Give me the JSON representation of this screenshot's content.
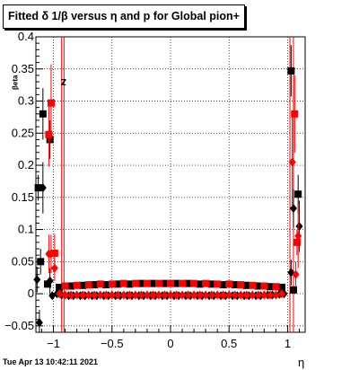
{
  "title": "Fitted δ 1/β versus η and p for Global pion+",
  "timestamp": "Tue Apr 13 10:42:11 2021",
  "colors": {
    "black": "#000000",
    "red": "#ff0000",
    "grid": "#000000"
  },
  "chart_data": {
    "type": "scatter",
    "title": "Fitted δ 1/β versus η and p for Global pion+",
    "xlabel": "η",
    "ylabel_main": "z",
    "ylabel_sub": "βeta",
    "xlim": [
      -1.15,
      1.15
    ],
    "ylim": [
      -0.06,
      0.4
    ],
    "grid": true,
    "xticks": [
      -1,
      -0.5,
      0,
      0.5,
      1
    ],
    "xtick_labels": [
      "−1",
      "−0.5",
      "0",
      "0.5",
      "1"
    ],
    "yticks": [
      -0.05,
      0,
      0.05,
      0.1,
      0.15,
      0.2,
      0.25,
      0.3,
      0.35,
      0.4
    ],
    "ytick_labels": [
      "−0.05",
      "0",
      "0.05",
      "0.1",
      "0.15",
      "0.2",
      "0.25",
      "0.3",
      "0.35",
      "0.4"
    ],
    "series": [
      {
        "marker": "square",
        "color": "#000000",
        "x": [
          -1.13,
          -1.11,
          -1.09,
          -1.05,
          -1.03,
          -0.95,
          -0.85,
          -0.75,
          -0.65,
          -0.55,
          -0.45,
          -0.35,
          -0.25,
          -0.15,
          -0.05,
          0.05,
          0.15,
          0.25,
          0.35,
          0.45,
          0.55,
          0.65,
          0.75,
          0.85,
          0.95,
          1.03,
          1.05,
          1.09
        ],
        "y": [
          0.165,
          0.05,
          0.28,
          0.015,
          0.24,
          0.01,
          0.012,
          0.013,
          0.014,
          0.014,
          0.015,
          0.015,
          0.016,
          0.016,
          0.016,
          0.016,
          0.016,
          0.015,
          0.015,
          0.014,
          0.014,
          0.013,
          0.012,
          0.011,
          0.01,
          0.347,
          0.006,
          0.155
        ],
        "err": [
          0.02,
          0.02,
          0.04,
          0.005,
          0.03,
          0.003,
          0.002,
          0.002,
          0.002,
          0.002,
          0.002,
          0.002,
          0.002,
          0.002,
          0.002,
          0.002,
          0.002,
          0.002,
          0.002,
          0.002,
          0.002,
          0.002,
          0.002,
          0.002,
          0.003,
          0.04,
          0.004,
          0.03
        ]
      },
      {
        "marker": "square",
        "color": "#ff0000",
        "x": [
          -1.04,
          -1.02,
          -0.99,
          -0.9,
          -0.8,
          -0.7,
          -0.6,
          -0.5,
          -0.4,
          -0.3,
          -0.2,
          -0.1,
          0.0,
          0.1,
          0.2,
          0.3,
          0.4,
          0.5,
          0.6,
          0.7,
          0.8,
          0.9,
          1.06,
          1.08
        ],
        "y": [
          0.248,
          0.297,
          0.063,
          0.012,
          0.013,
          0.014,
          0.015,
          0.015,
          0.016,
          0.016,
          0.016,
          0.016,
          0.016,
          0.016,
          0.016,
          0.016,
          0.015,
          0.015,
          0.014,
          0.013,
          0.012,
          0.011,
          0.28,
          0.08
        ],
        "err": [
          0.05,
          0.06,
          0.03,
          0.002,
          0.002,
          0.002,
          0.002,
          0.002,
          0.002,
          0.002,
          0.002,
          0.002,
          0.002,
          0.002,
          0.002,
          0.002,
          0.002,
          0.002,
          0.002,
          0.002,
          0.002,
          0.002,
          0.06,
          0.02
        ]
      },
      {
        "marker": "diamond",
        "color": "#000000",
        "x": [
          -1.14,
          -1.12,
          -1.09,
          -1.03,
          -1.01,
          -0.97,
          -0.93,
          -0.87,
          -0.83,
          -0.77,
          -0.73,
          -0.67,
          -0.63,
          -0.57,
          -0.53,
          -0.47,
          -0.43,
          -0.37,
          -0.33,
          -0.27,
          -0.23,
          -0.17,
          -0.13,
          -0.07,
          -0.03,
          0.03,
          0.07,
          0.13,
          0.17,
          0.23,
          0.27,
          0.33,
          0.37,
          0.43,
          0.47,
          0.53,
          0.57,
          0.63,
          0.67,
          0.73,
          0.77,
          0.83,
          0.87,
          0.93,
          0.97,
          1.03,
          1.05,
          1.1
        ],
        "y": [
          0.022,
          -0.045,
          0.165,
          0.02,
          -0.003,
          0.0,
          -0.002,
          -0.003,
          -0.003,
          -0.003,
          -0.003,
          -0.003,
          -0.003,
          -0.003,
          -0.003,
          -0.003,
          -0.003,
          -0.003,
          -0.003,
          -0.003,
          -0.003,
          -0.003,
          -0.003,
          -0.003,
          -0.003,
          -0.003,
          -0.003,
          -0.003,
          -0.003,
          -0.003,
          -0.003,
          -0.003,
          -0.003,
          -0.003,
          -0.003,
          -0.003,
          -0.003,
          -0.003,
          -0.003,
          -0.003,
          -0.003,
          -0.002,
          -0.002,
          -0.001,
          0.0,
          0.033,
          0.133,
          0.105
        ],
        "err": [
          0.02,
          0.02,
          0.04,
          0.02,
          0.003,
          0.003,
          0.002,
          0.002,
          0.002,
          0.002,
          0.002,
          0.002,
          0.002,
          0.002,
          0.002,
          0.002,
          0.002,
          0.002,
          0.002,
          0.002,
          0.002,
          0.002,
          0.002,
          0.002,
          0.002,
          0.002,
          0.002,
          0.002,
          0.002,
          0.002,
          0.002,
          0.002,
          0.002,
          0.002,
          0.002,
          0.002,
          0.002,
          0.002,
          0.002,
          0.002,
          0.002,
          0.002,
          0.002,
          0.002,
          0.003,
          0.02,
          0.03,
          0.04
        ]
      },
      {
        "marker": "diamond",
        "color": "#ff0000",
        "x": [
          -1.04,
          -1.02,
          -0.99,
          -0.95,
          -0.9,
          -0.85,
          -0.8,
          -0.75,
          -0.7,
          -0.65,
          -0.6,
          -0.55,
          -0.5,
          -0.45,
          -0.4,
          -0.35,
          -0.3,
          -0.25,
          -0.2,
          -0.15,
          -0.1,
          -0.05,
          0.0,
          0.05,
          0.1,
          0.15,
          0.2,
          0.25,
          0.3,
          0.35,
          0.4,
          0.45,
          0.5,
          0.55,
          0.6,
          0.65,
          0.7,
          0.75,
          0.8,
          0.85,
          0.9,
          0.95,
          1.04,
          1.07,
          1.09
        ],
        "y": [
          0.062,
          0.062,
          0.04,
          0.0,
          -0.002,
          -0.002,
          -0.002,
          -0.002,
          -0.002,
          -0.002,
          -0.002,
          -0.002,
          -0.002,
          -0.002,
          -0.002,
          -0.002,
          -0.002,
          -0.002,
          -0.002,
          -0.002,
          -0.002,
          -0.002,
          -0.002,
          -0.002,
          -0.002,
          -0.002,
          -0.002,
          -0.002,
          -0.002,
          -0.002,
          -0.002,
          -0.002,
          -0.002,
          -0.002,
          -0.002,
          -0.002,
          -0.002,
          -0.002,
          -0.002,
          -0.002,
          -0.002,
          0.0,
          0.205,
          0.03,
          0.09
        ],
        "err": [
          0.03,
          0.03,
          0.02,
          0.003,
          0.002,
          0.002,
          0.002,
          0.002,
          0.002,
          0.002,
          0.002,
          0.002,
          0.002,
          0.002,
          0.002,
          0.002,
          0.002,
          0.002,
          0.002,
          0.002,
          0.002,
          0.002,
          0.002,
          0.002,
          0.002,
          0.002,
          0.002,
          0.002,
          0.002,
          0.002,
          0.002,
          0.002,
          0.002,
          0.002,
          0.002,
          0.002,
          0.002,
          0.002,
          0.002,
          0.002,
          0.002,
          0.003,
          0.07,
          0.02,
          0.05
        ]
      }
    ],
    "red_lines_x": [
      -0.93,
      -0.91,
      1.02,
      1.05
    ]
  }
}
